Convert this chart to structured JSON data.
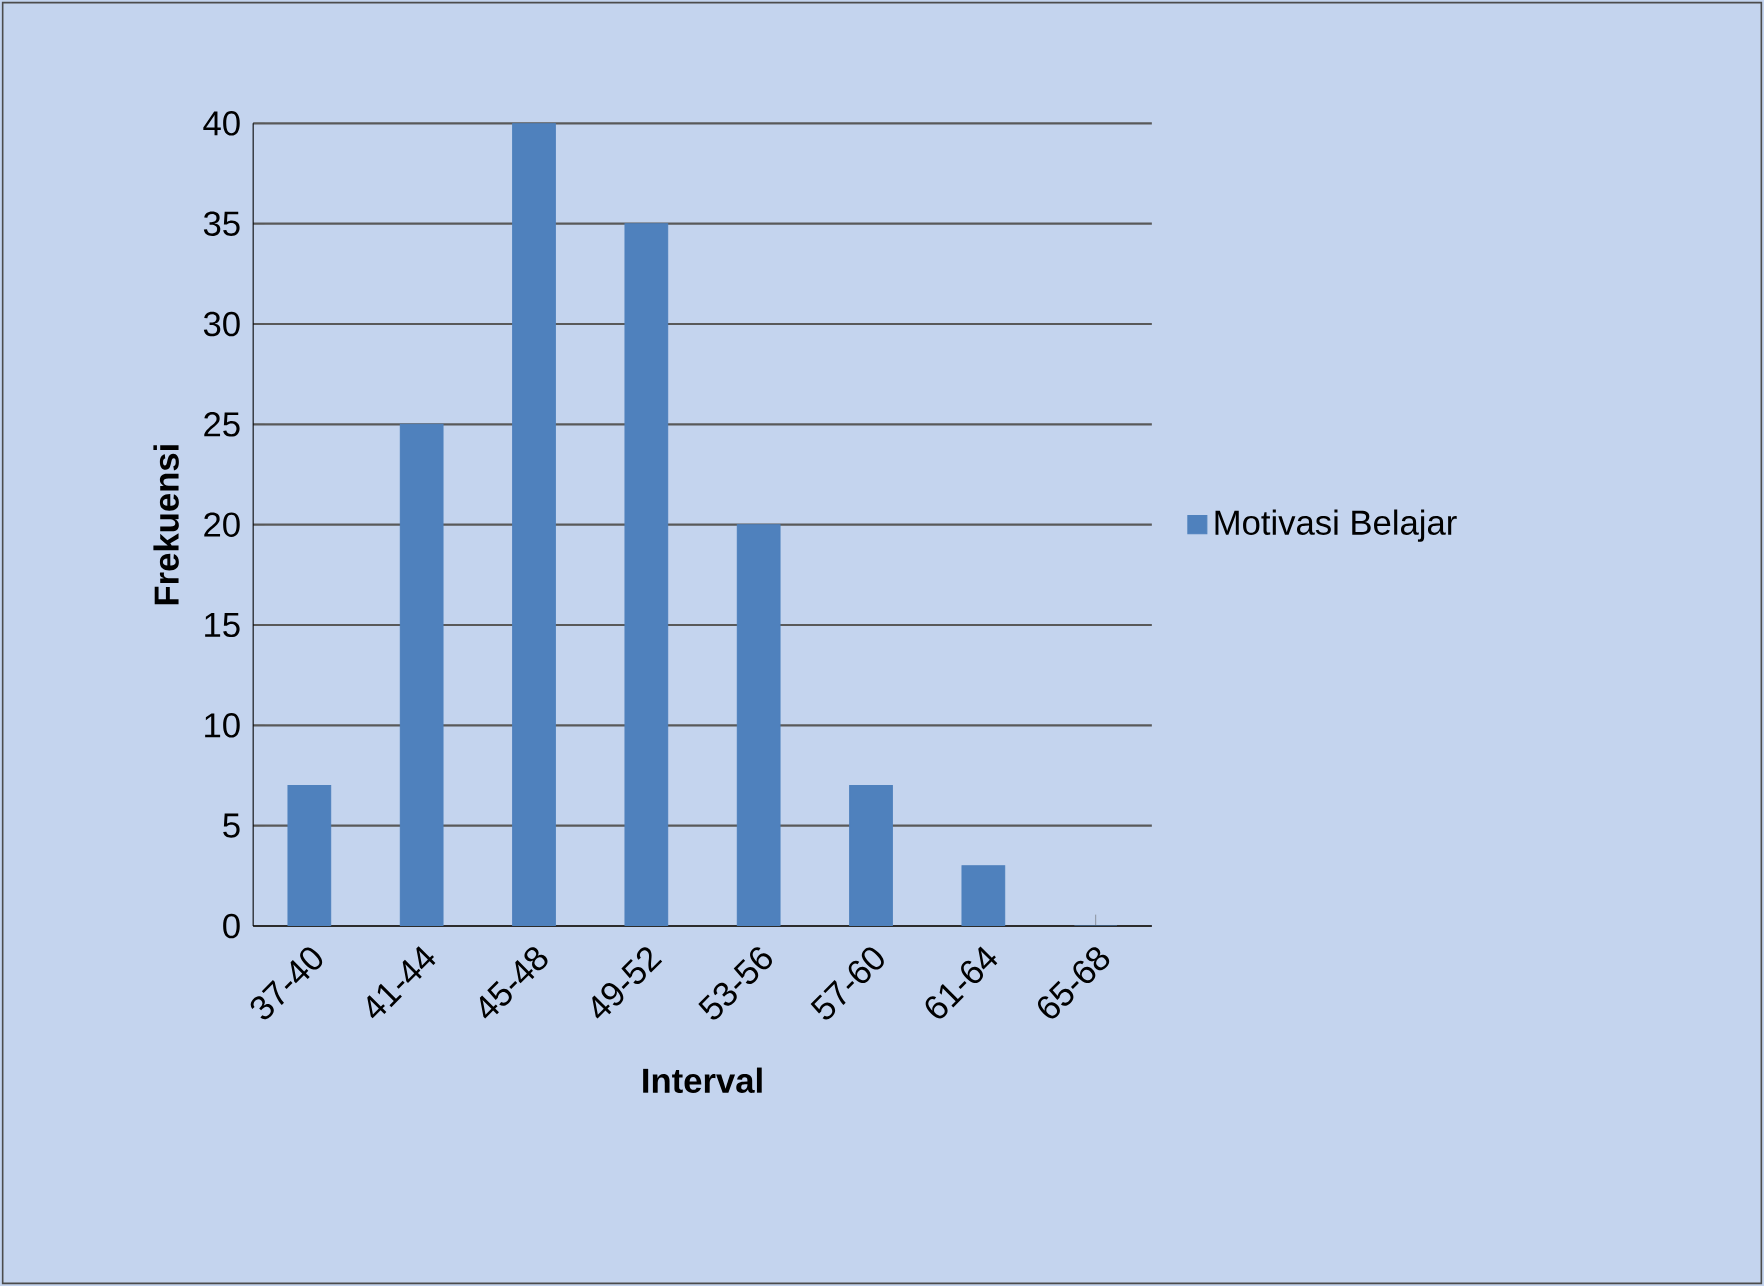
{
  "chart_data": {
    "type": "bar",
    "xlabel": "Interval",
    "ylabel": "Frekuensi",
    "categories": [
      "37-40",
      "41-44",
      "45-48",
      "49-52",
      "53-56",
      "57-60",
      "61-64",
      "65-68"
    ],
    "series": [
      {
        "name": "Motivasi Belajar",
        "color": "#4f81bd",
        "values": [
          7,
          25,
          40,
          35,
          20,
          7,
          3,
          0
        ]
      }
    ],
    "ylim": [
      0,
      40
    ],
    "yticks": [
      0,
      5,
      10,
      15,
      20,
      25,
      30,
      35,
      40
    ],
    "grid": "y",
    "legend": "right"
  }
}
